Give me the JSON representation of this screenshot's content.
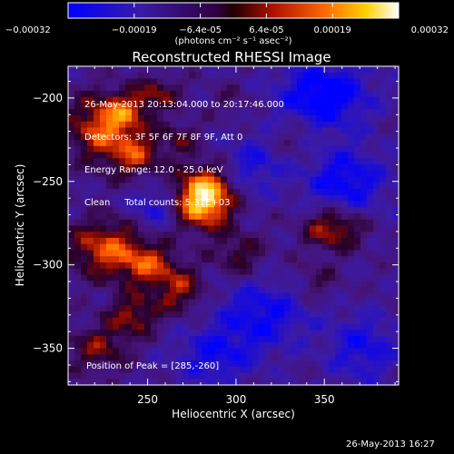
{
  "chart_data": {
    "type": "heatmap",
    "title": "Reconstructed RHESSI Image",
    "xlabel": "Heliocentric X (arcsec)",
    "ylabel": "Heliocentric Y (arcsec)",
    "xlim": [
      205,
      392
    ],
    "ylim": [
      -372,
      -181
    ],
    "xticks": [
      250,
      300,
      350
    ],
    "yticks": [
      -200,
      -250,
      -300,
      -350
    ],
    "colorbar": {
      "range": [
        -0.00032,
        0.00032
      ],
      "tick_labels": [
        "-0.00032",
        "-0.00019",
        "-6.4e-05",
        "6.4e-05",
        "0.00019",
        "0.00032"
      ],
      "unit_label": "(photons cm⁻² s⁻¹ asec⁻²)",
      "colormap": "blue-violet-red-orange-yellow-white"
    },
    "info_lines": [
      "26-May-2013 20:13:04.000 to 20:17:46.000",
      "Detectors: 3F 5F 6F 7F 8F 9F, Att 0",
      "Energy Range: 12.0 - 25.0 keV",
      "Clean     Total counts: 5.31E+03"
    ],
    "peak_text": "Position of Peak = [285,-260]",
    "peak": [
      285,
      -260
    ],
    "sources": [
      {
        "x": 282,
        "y": -260,
        "sx": 11,
        "sy": 12,
        "amp": 1.0
      },
      {
        "x": 223,
        "y": -218,
        "sx": 13,
        "sy": 14,
        "amp": 0.55
      },
      {
        "x": 243,
        "y": -234,
        "sx": 10,
        "sy": 10,
        "amp": 0.45
      },
      {
        "x": 238,
        "y": -208,
        "sx": 9,
        "sy": 8,
        "amp": 0.4
      },
      {
        "x": 256,
        "y": -197,
        "sx": 9,
        "sy": 7,
        "amp": 0.35
      },
      {
        "x": 226,
        "y": -290,
        "sx": 15,
        "sy": 12,
        "amp": 0.55
      },
      {
        "x": 250,
        "y": -300,
        "sx": 11,
        "sy": 9,
        "amp": 0.45
      },
      {
        "x": 268,
        "y": -315,
        "sx": 10,
        "sy": 10,
        "amp": 0.4
      },
      {
        "x": 242,
        "y": -330,
        "sx": 10,
        "sy": 9,
        "amp": 0.4
      },
      {
        "x": 222,
        "y": -350,
        "sx": 12,
        "sy": 10,
        "amp": 0.35
      },
      {
        "x": 302,
        "y": -294,
        "sx": 10,
        "sy": 9,
        "amp": 0.3
      },
      {
        "x": 355,
        "y": -278,
        "sx": 12,
        "sy": 9,
        "amp": 0.5
      },
      {
        "x": 345,
        "y": -310,
        "sx": 9,
        "sy": 8,
        "amp": 0.2
      },
      {
        "x": 332,
        "y": -225,
        "sx": 9,
        "sy": 8,
        "amp": 0.15
      },
      {
        "x": 297,
        "y": -202,
        "sx": 8,
        "sy": 7,
        "amp": 0.15
      },
      {
        "x": 268,
        "y": -224,
        "sx": 8,
        "sy": 8,
        "amp": 0.25
      }
    ],
    "dark_spots": [
      {
        "x": 350,
        "y": -198,
        "sx": 18,
        "sy": 14,
        "amp": 0.55
      },
      {
        "x": 362,
        "y": -250,
        "sx": 16,
        "sy": 14,
        "amp": 0.45
      },
      {
        "x": 315,
        "y": -330,
        "sx": 18,
        "sy": 14,
        "amp": 0.4
      },
      {
        "x": 288,
        "y": -355,
        "sx": 16,
        "sy": 12,
        "amp": 0.35
      },
      {
        "x": 372,
        "y": -350,
        "sx": 14,
        "sy": 14,
        "amp": 0.35
      },
      {
        "x": 253,
        "y": -265,
        "sx": 9,
        "sy": 9,
        "amp": 0.3
      },
      {
        "x": 310,
        "y": -240,
        "sx": 12,
        "sy": 12,
        "amp": 0.3
      }
    ]
  },
  "timestamp": "26-May-2013 16:27"
}
